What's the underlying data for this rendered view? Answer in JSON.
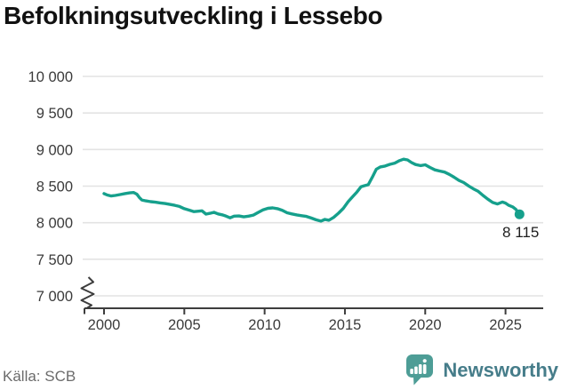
{
  "title": "Befolkningsutveckling i Lessebo",
  "footer": {
    "source": "Källa: SCB",
    "brand": "Newsworthy"
  },
  "colors": {
    "line": "#16a08c",
    "grid": "#e3e3e3",
    "axis": "#3d3d3d",
    "title_text": "#111111",
    "tick_text": "#3b3b3b",
    "value_text": "#1e1e1e",
    "source_text": "#6b6b6b",
    "brand_icon": "#4d9d96",
    "brand_text": "#467d8a"
  },
  "chart_data": {
    "type": "line",
    "title": "Befolkningsutveckling i Lessebo",
    "xlabel": "",
    "ylabel": "",
    "source": "Källa: SCB",
    "grid": true,
    "axis_break_below": 7000,
    "ylim": [
      7000,
      10000
    ],
    "xlim": [
      1998.7,
      2027.3
    ],
    "y_ticks": [
      {
        "value": 10000,
        "label": "10 000"
      },
      {
        "value": 9500,
        "label": "9 500"
      },
      {
        "value": 9000,
        "label": "9 000"
      },
      {
        "value": 8500,
        "label": "8 500"
      },
      {
        "value": 8000,
        "label": "8 000"
      },
      {
        "value": 7500,
        "label": "7 500"
      },
      {
        "value": 7000,
        "label": "7 000"
      }
    ],
    "x_ticks": [
      {
        "value": 2000,
        "label": "2000"
      },
      {
        "value": 2005,
        "label": "2005"
      },
      {
        "value": 2010,
        "label": "2010"
      },
      {
        "value": 2015,
        "label": "2015"
      },
      {
        "value": 2020,
        "label": "2020"
      },
      {
        "value": 2025,
        "label": "2025"
      }
    ],
    "latest": {
      "label": "8 115",
      "value": 8115,
      "x": 2025.87
    },
    "series": [
      {
        "name": "Befolkning i Lessebo",
        "color": "#16a08c",
        "points": [
          [
            2000.0,
            8398
          ],
          [
            2000.2,
            8378
          ],
          [
            2000.45,
            8365
          ],
          [
            2000.7,
            8372
          ],
          [
            2001.0,
            8385
          ],
          [
            2001.3,
            8398
          ],
          [
            2001.6,
            8408
          ],
          [
            2001.85,
            8412
          ],
          [
            2002.05,
            8390
          ],
          [
            2002.2,
            8345
          ],
          [
            2002.35,
            8310
          ],
          [
            2002.6,
            8298
          ],
          [
            2002.9,
            8288
          ],
          [
            2003.2,
            8280
          ],
          [
            2003.5,
            8270
          ],
          [
            2003.8,
            8262
          ],
          [
            2004.1,
            8250
          ],
          [
            2004.4,
            8238
          ],
          [
            2004.7,
            8222
          ],
          [
            2005.0,
            8192
          ],
          [
            2005.3,
            8172
          ],
          [
            2005.6,
            8152
          ],
          [
            2005.9,
            8158
          ],
          [
            2006.1,
            8162
          ],
          [
            2006.35,
            8118
          ],
          [
            2006.6,
            8128
          ],
          [
            2006.85,
            8142
          ],
          [
            2007.1,
            8120
          ],
          [
            2007.35,
            8108
          ],
          [
            2007.6,
            8090
          ],
          [
            2007.85,
            8066
          ],
          [
            2008.1,
            8090
          ],
          [
            2008.4,
            8092
          ],
          [
            2008.7,
            8080
          ],
          [
            2009.0,
            8090
          ],
          [
            2009.3,
            8104
          ],
          [
            2009.6,
            8140
          ],
          [
            2009.9,
            8174
          ],
          [
            2010.2,
            8196
          ],
          [
            2010.5,
            8202
          ],
          [
            2010.8,
            8192
          ],
          [
            2011.1,
            8170
          ],
          [
            2011.4,
            8136
          ],
          [
            2011.7,
            8120
          ],
          [
            2012.0,
            8106
          ],
          [
            2012.3,
            8096
          ],
          [
            2012.6,
            8086
          ],
          [
            2012.9,
            8064
          ],
          [
            2013.2,
            8040
          ],
          [
            2013.5,
            8022
          ],
          [
            2013.75,
            8044
          ],
          [
            2014.0,
            8034
          ],
          [
            2014.3,
            8072
          ],
          [
            2014.6,
            8130
          ],
          [
            2014.9,
            8196
          ],
          [
            2015.2,
            8288
          ],
          [
            2015.5,
            8360
          ],
          [
            2015.75,
            8420
          ],
          [
            2016.0,
            8490
          ],
          [
            2016.2,
            8505
          ],
          [
            2016.45,
            8520
          ],
          [
            2016.7,
            8620
          ],
          [
            2016.95,
            8730
          ],
          [
            2017.2,
            8762
          ],
          [
            2017.5,
            8775
          ],
          [
            2017.8,
            8798
          ],
          [
            2018.1,
            8815
          ],
          [
            2018.4,
            8848
          ],
          [
            2018.65,
            8868
          ],
          [
            2018.9,
            8858
          ],
          [
            2019.15,
            8822
          ],
          [
            2019.4,
            8795
          ],
          [
            2019.7,
            8780
          ],
          [
            2020.0,
            8792
          ],
          [
            2020.3,
            8755
          ],
          [
            2020.6,
            8722
          ],
          [
            2020.9,
            8706
          ],
          [
            2021.2,
            8692
          ],
          [
            2021.5,
            8660
          ],
          [
            2021.8,
            8622
          ],
          [
            2022.1,
            8578
          ],
          [
            2022.4,
            8548
          ],
          [
            2022.7,
            8502
          ],
          [
            2023.0,
            8462
          ],
          [
            2023.3,
            8428
          ],
          [
            2023.6,
            8372
          ],
          [
            2023.9,
            8322
          ],
          [
            2024.2,
            8276
          ],
          [
            2024.5,
            8256
          ],
          [
            2024.8,
            8282
          ],
          [
            2025.0,
            8268
          ],
          [
            2025.2,
            8238
          ],
          [
            2025.45,
            8216
          ],
          [
            2025.65,
            8182
          ],
          [
            2025.87,
            8115
          ]
        ]
      }
    ]
  }
}
